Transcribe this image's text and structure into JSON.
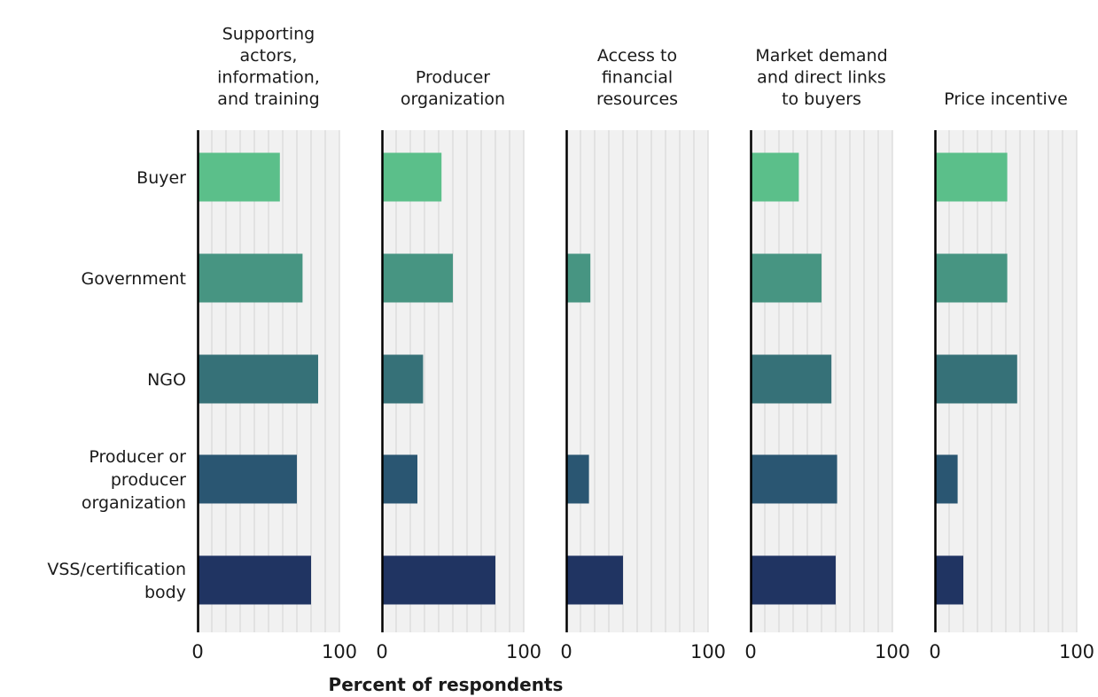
{
  "chart_data": {
    "type": "bar",
    "orientation": "horizontal",
    "xlabel": "Percent of respondents",
    "xlim": [
      0,
      100
    ],
    "x_ticks": [
      "0",
      "100"
    ],
    "grid": true,
    "categories": [
      [
        "Buyer"
      ],
      [
        "Government"
      ],
      [
        "NGO"
      ],
      [
        "Producer or",
        "producer",
        "organization"
      ],
      [
        "VSS/certification",
        "body"
      ]
    ],
    "category_colors": [
      "#5bbf8a",
      "#479582",
      "#367178",
      "#2a5672",
      "#203462"
    ],
    "panels": [
      {
        "title": [
          "Supporting",
          "actors,",
          "information,",
          "and training"
        ],
        "values": [
          58,
          74,
          85,
          70,
          80
        ]
      },
      {
        "title": [
          "Producer",
          "organization"
        ],
        "values": [
          42,
          50,
          29,
          25,
          80
        ]
      },
      {
        "title": [
          "Access to",
          "financial",
          "resources"
        ],
        "values": [
          null,
          17,
          null,
          16,
          40
        ]
      },
      {
        "title": [
          "Market demand",
          "and direct links",
          "to buyers"
        ],
        "values": [
          34,
          50,
          57,
          61,
          60
        ]
      },
      {
        "title": [
          "Price incentive"
        ],
        "values": [
          51,
          51,
          58,
          16,
          20
        ]
      }
    ]
  }
}
